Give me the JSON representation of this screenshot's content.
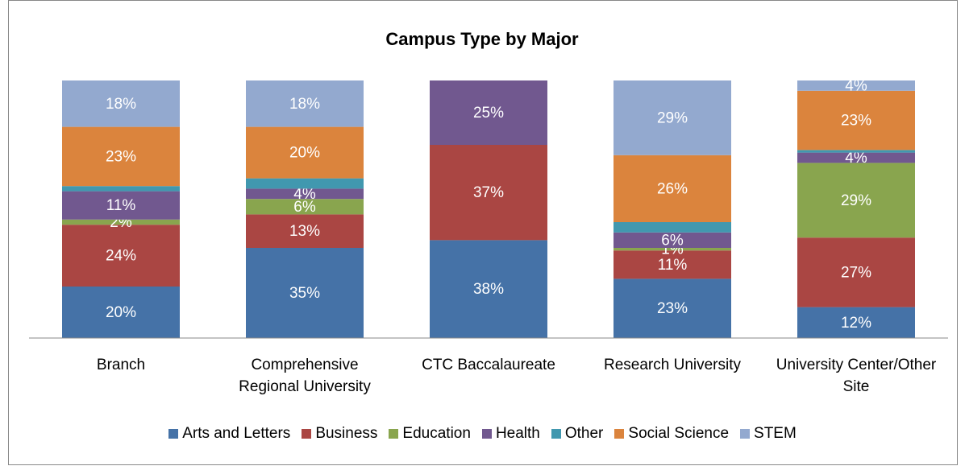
{
  "chart_data": {
    "type": "stacked_bar",
    "title": "Campus Type by Major",
    "categories": [
      "Branch",
      "Comprehensive Regional University",
      "CTC Baccalaureate",
      "Research University",
      "University Center/Other Site"
    ],
    "ylim": [
      0,
      100
    ],
    "series": [
      {
        "name": "Arts and Letters",
        "color": "#4572a7",
        "values": [
          20,
          35,
          38,
          23,
          12
        ],
        "value_labels": [
          "20%",
          "35%",
          "38%",
          "23%",
          "12%"
        ]
      },
      {
        "name": "Business",
        "color": "#aa4643",
        "values": [
          24,
          13,
          37,
          11,
          27
        ],
        "value_labels": [
          "24%",
          "13%",
          "37%",
          "11%",
          "27%"
        ]
      },
      {
        "name": "Education",
        "color": "#89a54e",
        "values": [
          2,
          6,
          0,
          1,
          29
        ],
        "value_labels": [
          "2%",
          "6%",
          null,
          "1%",
          "29%"
        ]
      },
      {
        "name": "Health",
        "color": "#71588f",
        "values": [
          11,
          4,
          25,
          6,
          4
        ],
        "value_labels": [
          "11%",
          "4%",
          "25%",
          "6%",
          "4%"
        ]
      },
      {
        "name": "Other",
        "color": "#4198af",
        "values": [
          2,
          4,
          0,
          4,
          1
        ],
        "value_labels": [
          null,
          null,
          null,
          null,
          null
        ]
      },
      {
        "name": "Social Science",
        "color": "#db843d",
        "values": [
          23,
          20,
          0,
          26,
          23
        ],
        "value_labels": [
          "23%",
          "20%",
          null,
          "26%",
          "23%"
        ]
      },
      {
        "name": "STEM",
        "color": "#93a9cf",
        "values": [
          18,
          18,
          0,
          29,
          4
        ],
        "value_labels": [
          "18%",
          "18%",
          null,
          "29%",
          "4%"
        ]
      }
    ]
  }
}
